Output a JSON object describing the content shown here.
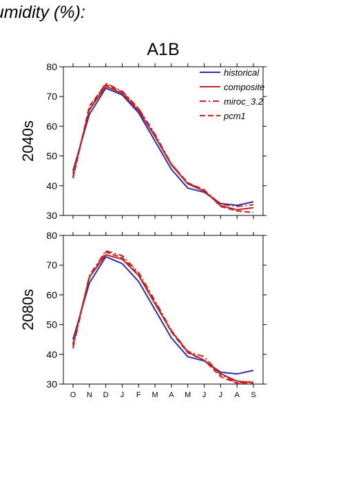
{
  "page": {
    "title": "humidity (%):"
  },
  "scenario": "A1B",
  "legend": [
    {
      "name": "historical",
      "color": "#2a2ab4",
      "dash": "solid"
    },
    {
      "name": "composite",
      "color": "#c42020",
      "dash": "solid"
    },
    {
      "name": "miroc_3.2",
      "color": "#c42020",
      "dash": "dashdot"
    },
    {
      "name": "pcm1",
      "color": "#c42020",
      "dash": "dashed"
    }
  ],
  "chart_data": [
    {
      "type": "line",
      "title": "A1B",
      "ylabel": "2040s",
      "categories": [
        "O",
        "N",
        "D",
        "J",
        "F",
        "M",
        "A",
        "M",
        "J",
        "J",
        "A",
        "S"
      ],
      "ylim": [
        30,
        80
      ],
      "yticks": [
        30,
        40,
        50,
        60,
        70,
        80
      ],
      "show_x_labels": false,
      "legend_position": "top-right",
      "series": [
        {
          "name": "historical",
          "values": [
            45.0,
            64.0,
            72.8,
            70.5,
            64.5,
            55.0,
            45.5,
            39.2,
            37.8,
            34.0,
            33.4,
            34.6
          ]
        },
        {
          "name": "composite",
          "values": [
            44.0,
            65.5,
            73.5,
            71.0,
            65.2,
            56.5,
            47.0,
            40.6,
            38.2,
            33.3,
            31.9,
            32.6
          ]
        },
        {
          "name": "miroc_3.2",
          "values": [
            43.0,
            66.0,
            74.5,
            71.8,
            66.0,
            57.3,
            47.3,
            40.8,
            38.5,
            33.8,
            33.0,
            33.6
          ]
        },
        {
          "name": "pcm1",
          "values": [
            42.5,
            66.8,
            74.0,
            71.5,
            65.8,
            56.8,
            47.2,
            41.0,
            38.6,
            33.0,
            31.5,
            31.0
          ]
        }
      ]
    },
    {
      "type": "line",
      "title": "",
      "ylabel": "2080s",
      "categories": [
        "O",
        "N",
        "D",
        "J",
        "F",
        "M",
        "A",
        "M",
        "J",
        "J",
        "A",
        "S"
      ],
      "ylim": [
        30,
        80
      ],
      "yticks": [
        30,
        40,
        50,
        60,
        70,
        80
      ],
      "show_x_labels": true,
      "series": [
        {
          "name": "historical",
          "values": [
            45.0,
            64.0,
            72.8,
            70.5,
            64.5,
            55.0,
            45.5,
            39.2,
            37.8,
            34.0,
            33.4,
            34.6
          ]
        },
        {
          "name": "composite",
          "values": [
            43.5,
            66.0,
            73.5,
            72.0,
            66.5,
            57.0,
            47.8,
            40.8,
            38.0,
            33.5,
            31.0,
            30.5
          ]
        },
        {
          "name": "miroc_3.2",
          "values": [
            42.0,
            66.5,
            74.8,
            73.2,
            67.5,
            58.0,
            48.0,
            41.0,
            39.2,
            33.2,
            30.4,
            31.0
          ]
        },
        {
          "name": "pcm1",
          "values": [
            43.0,
            65.8,
            74.4,
            72.5,
            66.8,
            57.5,
            47.5,
            40.5,
            38.0,
            32.5,
            30.3,
            30.2
          ]
        }
      ]
    }
  ]
}
